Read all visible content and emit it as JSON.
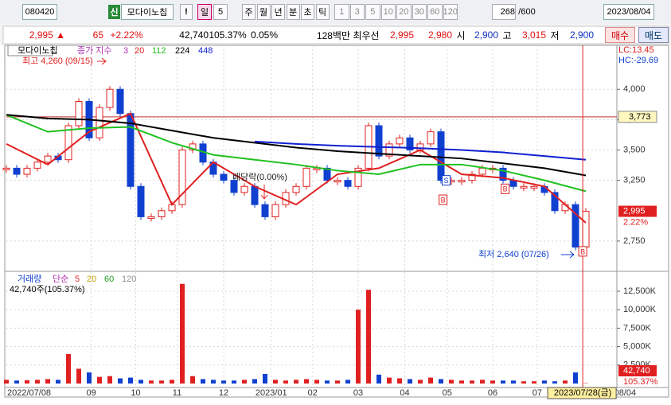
{
  "toolbar": {
    "code": "080420",
    "badge": "신",
    "name": "모다이노칩",
    "alert": "!",
    "period": "일",
    "period_count": "5",
    "periods": [
      "주",
      "월",
      "년",
      "분",
      "초",
      "틱"
    ],
    "intervals": [
      "1",
      "3",
      "5",
      "10",
      "20",
      "30",
      "60",
      "120"
    ],
    "count": "268",
    "count_total": "/600",
    "date": "2023/08/04"
  },
  "quote": {
    "price": "2,995 ▲",
    "change": "65",
    "change_pct": "+2.22%",
    "volume": "42,740",
    "volume_pct": "105.37%",
    "turnover": "0.05%",
    "amount": "128백만",
    "best_label": "최우선",
    "ask": "2,995",
    "bid": "2,980",
    "open_label": "시",
    "open": "2,900",
    "high_label": "고",
    "high": "3,015",
    "low_label": "저",
    "low": "2,900",
    "buy": "매수",
    "sell": "매도"
  },
  "chart_data": [
    {
      "type": "candlestick",
      "title": "모다이노칩",
      "legend_label": "종가 지수",
      "ma_label": "3",
      "ma_color": "#b030b0",
      "up_color": "#e02020",
      "down_color": "#1040d0",
      "x": [
        0,
        1,
        2,
        3,
        4,
        5,
        6,
        7,
        8,
        9,
        10,
        11,
        12,
        13,
        14,
        15,
        16,
        17,
        18,
        19,
        20,
        21,
        22,
        23,
        24,
        25,
        26,
        27,
        28,
        29,
        30,
        31,
        32,
        33,
        34,
        35,
        36,
        37,
        38,
        39,
        40,
        41,
        42,
        43,
        44,
        45,
        46,
        47,
        48,
        49,
        50,
        51,
        52,
        53,
        54,
        55,
        56
      ],
      "values": [
        3350,
        3300,
        3350,
        3400,
        3450,
        3420,
        3700,
        3900,
        3600,
        3850,
        4000,
        3800,
        3200,
        2950,
        2950,
        3000,
        3050,
        3500,
        3550,
        3400,
        3300,
        3250,
        3150,
        3200,
        3050,
        2950,
        3050,
        3150,
        3200,
        3350,
        3350,
        3250,
        3250,
        3200,
        3350,
        3700,
        3450,
        3550,
        3600,
        3500,
        3550,
        3650,
        3250,
        3250,
        3250,
        3300,
        3350,
        3350,
        3250,
        3200,
        3200,
        3200,
        3150,
        3000,
        3050,
        2700,
        2995
      ],
      "series": [
        {
          "name": "20",
          "color": "#e02020",
          "x": [
            0,
            4,
            8,
            12,
            16,
            20,
            24,
            28,
            32,
            36,
            40,
            44,
            48,
            52,
            56
          ],
          "values": [
            3550,
            3380,
            3650,
            3800,
            3050,
            3400,
            3200,
            3050,
            3300,
            3350,
            3500,
            3300,
            3270,
            3200,
            2900
          ]
        },
        {
          "name": "112",
          "color": "#20c020",
          "x": [
            0,
            4,
            8,
            12,
            16,
            20,
            24,
            28,
            32,
            36,
            40,
            44,
            48,
            52,
            56
          ],
          "values": [
            3790,
            3650,
            3680,
            3690,
            3560,
            3460,
            3420,
            3380,
            3330,
            3300,
            3380,
            3380,
            3330,
            3250,
            3160
          ]
        },
        {
          "name": "224",
          "color": "#000000",
          "x": [
            0,
            4,
            8,
            12,
            16,
            20,
            24,
            28,
            32,
            36,
            40,
            44,
            48,
            52,
            56
          ],
          "values": [
            3790,
            3760,
            3750,
            3720,
            3660,
            3600,
            3560,
            3520,
            3490,
            3470,
            3450,
            3430,
            3390,
            3350,
            3290
          ]
        },
        {
          "name": "448",
          "color": "#1020d0",
          "x": [
            24,
            28,
            32,
            36,
            40,
            44,
            48,
            52,
            56
          ],
          "values": [
            3570,
            3550,
            3535,
            3525,
            3515,
            3500,
            3480,
            3450,
            3420
          ]
        }
      ],
      "xlim": [
        0,
        59
      ],
      "ylim": [
        2507,
        4362
      ],
      "yticks": [
        {
          "value": 2750,
          "label": "2,750"
        },
        {
          "value": 3250,
          "label": "3,250"
        },
        {
          "value": 3500,
          "label": "3,500"
        },
        {
          "value": 3750,
          "label": "3,750"
        },
        {
          "value": 4000,
          "label": "4,000"
        }
      ],
      "reference": {
        "value": 3773,
        "label": "3,773"
      },
      "last": {
        "value": 2995,
        "label": "2,995"
      },
      "last_change": "2.22%",
      "lc": "LC:13.45",
      "hc": "HC:-29.69",
      "high_note": "최고 4,260 (09/15)",
      "low_note": "최저 2,640 (07/26)",
      "ex_div_note": "배당락(0.00%)",
      "signals": [
        {
          "label": "S",
          "x": 42.5,
          "value": 3250
        },
        {
          "label": "B",
          "x": 42.2,
          "value": 3090
        },
        {
          "label": "B",
          "x": 48.2,
          "value": 3180
        },
        {
          "label": "B",
          "x": 55.7,
          "value": 2665
        }
      ]
    },
    {
      "type": "bar",
      "title": "거래량",
      "legend_label": "단순",
      "ma_labels": [
        {
          "name": "5",
          "color": "#e03030"
        },
        {
          "name": "20",
          "color": "#c8a000"
        },
        {
          "name": "60",
          "color": "#20a020"
        },
        {
          "name": "120",
          "color": "#909090"
        }
      ],
      "note": "42,740주(105.37%)",
      "last": {
        "value": 42.74,
        "label": "42,740"
      },
      "last_pct": "105.37%",
      "values": [
        500,
        400,
        450,
        500,
        600,
        500,
        4000,
        2000,
        1500,
        900,
        1000,
        700,
        800,
        500,
        400,
        400,
        500,
        13500,
        1000,
        600,
        500,
        400,
        400,
        500,
        600,
        1300,
        500,
        400,
        500,
        600,
        500,
        400,
        400,
        500,
        10000,
        12700,
        1200,
        800,
        700,
        600,
        500,
        800,
        600,
        500,
        400,
        400,
        500,
        400,
        400,
        400,
        300,
        300,
        400,
        300,
        400,
        1500,
        42.74
      ],
      "xlim": [
        0,
        59
      ],
      "ylim": [
        0,
        15090
      ],
      "yticks": [
        {
          "value": 2500,
          "label": "2,500K"
        },
        {
          "value": 5000,
          "label": "5,000K"
        },
        {
          "value": 7500,
          "label": "7,500K"
        },
        {
          "value": 10000,
          "label": "10,000K"
        },
        {
          "value": 12500,
          "label": "12,500K"
        }
      ],
      "xticks": [
        {
          "value": 0,
          "label": "2022/07/08"
        },
        {
          "value": 8.2,
          "label": "09"
        },
        {
          "value": 12.5,
          "label": "10"
        },
        {
          "value": 16.5,
          "label": "11"
        },
        {
          "value": 21,
          "label": "12"
        },
        {
          "value": 25.6,
          "label": "2023/01"
        },
        {
          "value": 29.6,
          "label": "02"
        },
        {
          "value": 34,
          "label": "03"
        },
        {
          "value": 38.5,
          "label": "04"
        },
        {
          "value": 42.6,
          "label": "05"
        },
        {
          "value": 47,
          "label": "06"
        },
        {
          "value": 51.3,
          "label": "07"
        },
        {
          "value": 59.8,
          "label": "08/04"
        }
      ],
      "cursor": {
        "value": 55.7,
        "label": "2023/07/28(금)"
      }
    }
  ]
}
